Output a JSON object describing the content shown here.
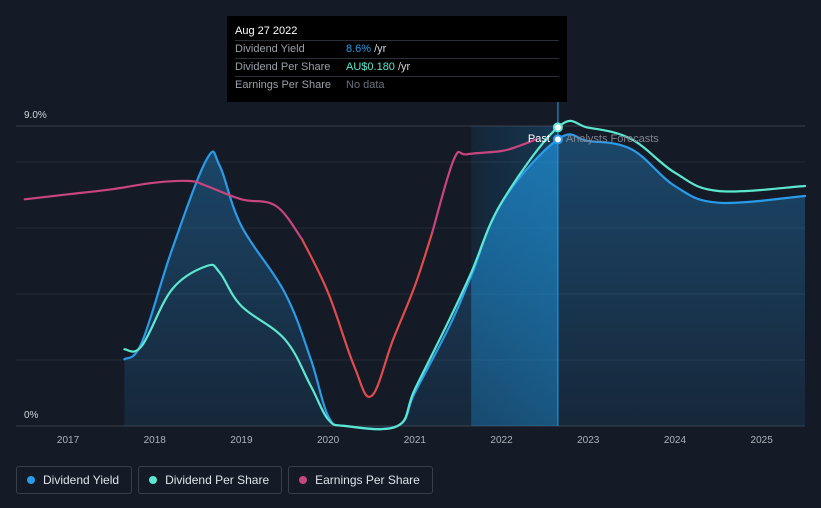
{
  "chart_data": {
    "type": "line",
    "title": "",
    "x_range": [
      2016.4,
      2025.5
    ],
    "y_range": [
      0,
      9.0
    ],
    "y_tick_labels": [
      "9.0%",
      "0%"
    ],
    "x_tick_labels": [
      "2017",
      "2018",
      "2019",
      "2020",
      "2021",
      "2022",
      "2023",
      "2024",
      "2025"
    ],
    "x_ticks": [
      2017,
      2018,
      2019,
      2020,
      2021,
      2022,
      2023,
      2024,
      2025
    ],
    "past_label": "Past",
    "forecast_label": "Analysts Forecasts",
    "past_boundary_x": 2022.65,
    "forecast_shade_start_x": 2021.65,
    "series": [
      {
        "name": "Dividend Yield",
        "color": "#2a9be8",
        "area": true,
        "points": [
          [
            2017.65,
            2.0
          ],
          [
            2017.85,
            2.5
          ],
          [
            2018.2,
            5.3
          ],
          [
            2018.6,
            8.0
          ],
          [
            2018.75,
            7.8
          ],
          [
            2019.0,
            6.0
          ],
          [
            2019.5,
            4.0
          ],
          [
            2019.8,
            2.0
          ],
          [
            2020.0,
            0.3
          ],
          [
            2020.2,
            0.0
          ],
          [
            2020.8,
            0.0
          ],
          [
            2021.0,
            1.0
          ],
          [
            2021.4,
            3.0
          ],
          [
            2021.65,
            4.5
          ],
          [
            2022.0,
            6.7
          ],
          [
            2022.65,
            8.6
          ],
          [
            2023.0,
            8.55
          ],
          [
            2023.5,
            8.3
          ],
          [
            2024.0,
            7.2
          ],
          [
            2024.5,
            6.7
          ],
          [
            2025.5,
            6.9
          ]
        ]
      },
      {
        "name": "Dividend Per Share",
        "color": "#5ce8d0",
        "area": false,
        "points": [
          [
            2017.65,
            2.3
          ],
          [
            2017.85,
            2.4
          ],
          [
            2018.2,
            4.1
          ],
          [
            2018.6,
            4.8
          ],
          [
            2018.75,
            4.6
          ],
          [
            2019.0,
            3.6
          ],
          [
            2019.5,
            2.6
          ],
          [
            2019.8,
            1.2
          ],
          [
            2020.0,
            0.2
          ],
          [
            2020.2,
            0.0
          ],
          [
            2020.8,
            0.0
          ],
          [
            2021.0,
            1.1
          ],
          [
            2021.4,
            3.2
          ],
          [
            2021.65,
            4.6
          ],
          [
            2022.0,
            6.7
          ],
          [
            2022.65,
            8.96
          ],
          [
            2023.0,
            8.95
          ],
          [
            2023.5,
            8.6
          ],
          [
            2024.0,
            7.6
          ],
          [
            2024.5,
            7.05
          ],
          [
            2025.5,
            7.2
          ]
        ]
      },
      {
        "name": "Earnings Per Share",
        "color": "#c8457f",
        "area": false,
        "points": [
          [
            2016.5,
            6.8
          ],
          [
            2017.0,
            6.95
          ],
          [
            2017.5,
            7.1
          ],
          [
            2018.0,
            7.3
          ],
          [
            2018.4,
            7.35
          ],
          [
            2018.6,
            7.2
          ],
          [
            2019.0,
            6.8
          ],
          [
            2019.4,
            6.6
          ],
          [
            2019.7,
            5.6
          ]
        ]
      },
      {
        "name": "Earnings Per Share",
        "color": "#e04b4b",
        "area": false,
        "points": [
          [
            2019.7,
            5.6
          ],
          [
            2020.0,
            4.0
          ],
          [
            2020.3,
            1.8
          ],
          [
            2020.5,
            0.9
          ],
          [
            2020.75,
            2.6
          ],
          [
            2021.0,
            4.2
          ],
          [
            2021.2,
            5.8
          ]
        ]
      },
      {
        "name": "Earnings Per Share",
        "color": "#c8457f",
        "area": false,
        "points": [
          [
            2021.2,
            5.8
          ],
          [
            2021.45,
            8.0
          ],
          [
            2021.6,
            8.15
          ],
          [
            2022.0,
            8.25
          ],
          [
            2022.2,
            8.4
          ],
          [
            2022.4,
            8.6
          ]
        ]
      }
    ],
    "markers": [
      {
        "series": "Dividend Per Share",
        "x": 2022.65,
        "y": 8.96,
        "color": "#5ce8d0"
      },
      {
        "series": "Dividend Yield",
        "x": 2022.65,
        "y": 8.6,
        "color": "#2a9be8"
      }
    ],
    "legend": [
      {
        "label": "Dividend Yield",
        "color": "#2a9be8"
      },
      {
        "label": "Dividend Per Share",
        "color": "#5ce8d0"
      },
      {
        "label": "Earnings Per Share",
        "color": "#c8457f"
      }
    ],
    "legend_position": "bottom-left"
  },
  "tooltip": {
    "date": "Aug 27 2022",
    "rows": [
      {
        "label": "Dividend Yield",
        "value": "8.6%",
        "unit": "/yr",
        "value_color": "#2a9be8"
      },
      {
        "label": "Dividend Per Share",
        "value": "AU$0.180",
        "unit": "/yr",
        "value_color": "#5ce8d0"
      },
      {
        "label": "Earnings Per Share",
        "value": "No data",
        "unit": "",
        "value_color": "#6b7079"
      }
    ]
  }
}
